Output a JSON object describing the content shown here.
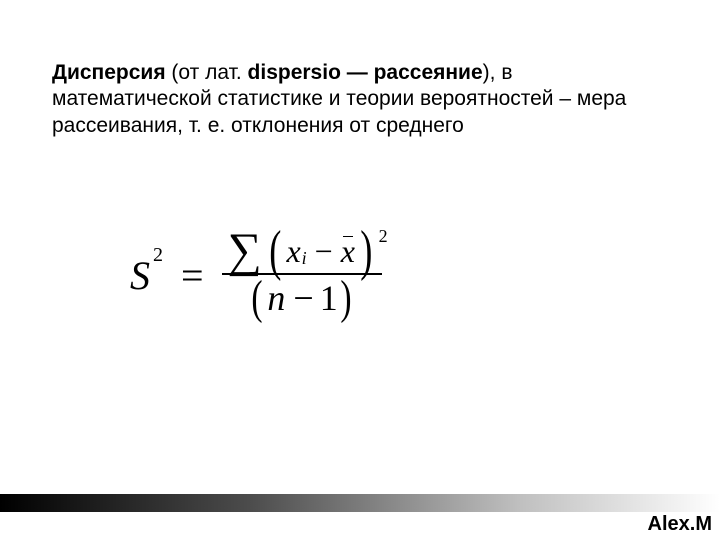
{
  "paragraph": {
    "term": "Дисперсия",
    "paren_open": " (от лат. ",
    "latin": "dispersio",
    "dash": " — ",
    "translation": "рассеяние",
    "paren_close": "), в математической статистике и теории вероятностей – мера рассеивания, т. е. отклонения от среднего"
  },
  "formula": {
    "lhs_base": "S",
    "lhs_exp": "2",
    "equals": "=",
    "sigma": "∑",
    "x": "x",
    "i": "i",
    "minus": "−",
    "xbar": "x",
    "num_exp": "2",
    "n": "n",
    "den_minus": "−",
    "one": "1"
  },
  "signature": "Alex.M",
  "colors": {
    "text": "#000000",
    "background": "#ffffff",
    "gradient_start": "#000000",
    "gradient_end": "#ffffff"
  }
}
